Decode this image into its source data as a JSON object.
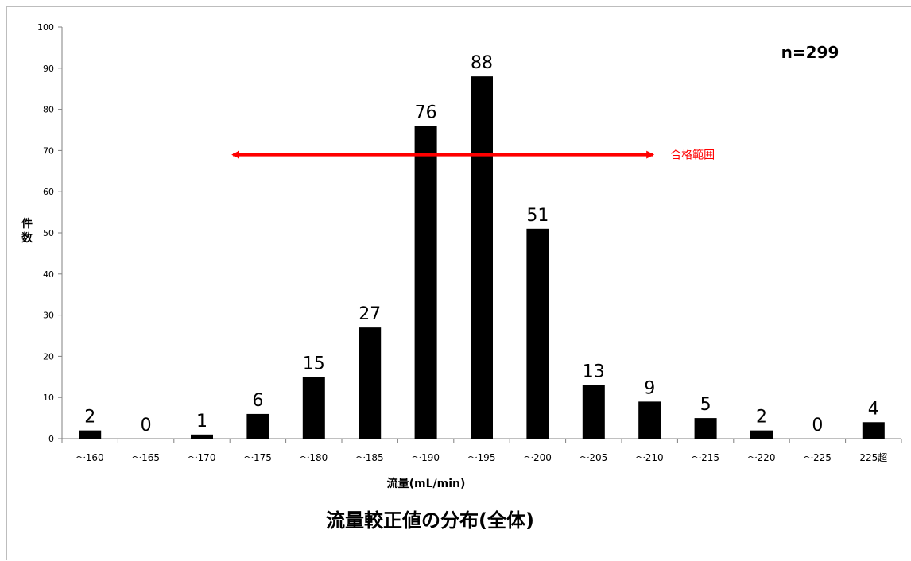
{
  "chart_data": {
    "type": "bar",
    "title": "流量較正値の分布(全体)",
    "xlabel": "流量(mL/min)",
    "ylabel": "件数",
    "ylim": [
      0,
      100
    ],
    "yticks": [
      0,
      10,
      20,
      30,
      40,
      50,
      60,
      70,
      80,
      90,
      100
    ],
    "categories": [
      "～160",
      "～165",
      "～170",
      "～175",
      "～180",
      "～185",
      "～190",
      "～195",
      "～200",
      "～205",
      "～210",
      "～215",
      "～220",
      "～225",
      "225超"
    ],
    "values": [
      2,
      0,
      1,
      6,
      15,
      27,
      76,
      88,
      51,
      13,
      9,
      5,
      2,
      0,
      4
    ],
    "annotation_n": "n=299",
    "range_annotation": {
      "label": "合格範囲",
      "from_index": 3,
      "to_index": 10,
      "y": 69
    },
    "bar_color": "#000000",
    "annotation_color": "#ff0000",
    "grid": false,
    "legend": "none"
  }
}
